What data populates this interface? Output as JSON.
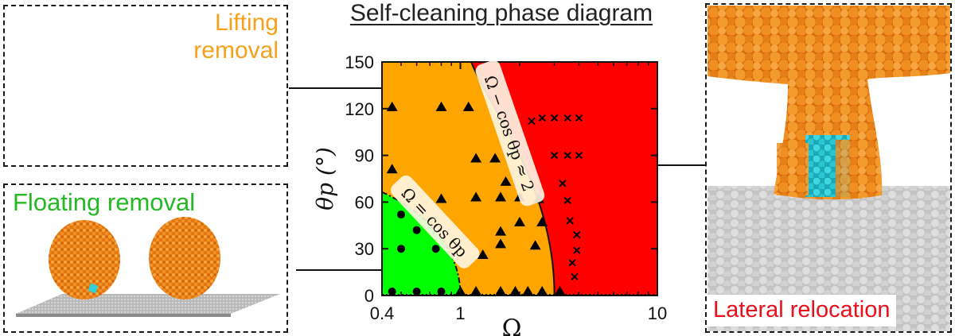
{
  "panels": {
    "lifting": {
      "label": "Lifting\nremoval"
    },
    "floating": {
      "label": "Floating removal"
    },
    "lateral": {
      "label": "Lateral relocation"
    }
  },
  "colors": {
    "lifting": "#f5a11c",
    "floating": "#22b922",
    "lateral": "#e8101a",
    "region_orange": "#ffa500",
    "region_green": "#00ff00",
    "region_red": "#ff0000"
  },
  "chart_data": {
    "type": "scatter",
    "title": "Self-cleaning phase diagram",
    "xlabel": "Ω",
    "ylabel": "θp (°)",
    "xscale": "log",
    "xlim": [
      0.4,
      10
    ],
    "ylim": [
      0,
      150
    ],
    "xticks": [
      {
        "value": 0.4,
        "label": "0.4"
      },
      {
        "value": 1,
        "label": "1"
      },
      {
        "value": 10,
        "label": "10"
      }
    ],
    "yticks": [
      0,
      30,
      60,
      90,
      120,
      150
    ],
    "regions": [
      {
        "name": "Lifting removal",
        "color": "#ffa500"
      },
      {
        "name": "Floating removal",
        "color": "#00ff00"
      },
      {
        "name": "Lateral relocation",
        "color": "#ff0000"
      }
    ],
    "boundary_labels": [
      "Ω = cos θp",
      "Ω − cos θp ≈ 2"
    ],
    "series": [
      {
        "marker": "circle",
        "points": [
          [
            0.45,
            1
          ],
          [
            0.6,
            1
          ],
          [
            0.8,
            1
          ],
          [
            0.5,
            30
          ],
          [
            0.75,
            30
          ],
          [
            0.6,
            42
          ],
          [
            0.5,
            52
          ]
        ]
      },
      {
        "marker": "triangle",
        "points": [
          [
            0.45,
            121
          ],
          [
            0.8,
            121
          ],
          [
            1.1,
            121
          ],
          [
            0.45,
            81
          ],
          [
            1.2,
            88
          ],
          [
            1.5,
            88
          ],
          [
            1.7,
            73
          ],
          [
            0.8,
            62
          ],
          [
            1.2,
            63
          ],
          [
            1.6,
            63
          ],
          [
            2.0,
            63
          ],
          [
            2.5,
            62
          ],
          [
            2.0,
            47
          ],
          [
            2.6,
            47
          ],
          [
            1.6,
            41
          ],
          [
            1.6,
            33
          ],
          [
            2.4,
            32
          ],
          [
            1.3,
            26
          ],
          [
            1.0,
            1
          ],
          [
            1.2,
            1
          ],
          [
            1.6,
            1
          ],
          [
            1.9,
            1
          ],
          [
            2.2,
            1
          ],
          [
            2.6,
            1
          ],
          [
            3.2,
            1
          ]
        ]
      },
      {
        "marker": "x",
        "points": [
          [
            2.3,
            112
          ],
          [
            2.6,
            114
          ],
          [
            3.0,
            114
          ],
          [
            3.5,
            114
          ],
          [
            4.0,
            114
          ],
          [
            3.0,
            90
          ],
          [
            3.5,
            90
          ],
          [
            4.0,
            90
          ],
          [
            3.3,
            72
          ],
          [
            3.5,
            61
          ],
          [
            3.6,
            48
          ],
          [
            3.9,
            39
          ],
          [
            3.9,
            29
          ],
          [
            3.7,
            21
          ],
          [
            3.8,
            12
          ]
        ]
      }
    ]
  }
}
